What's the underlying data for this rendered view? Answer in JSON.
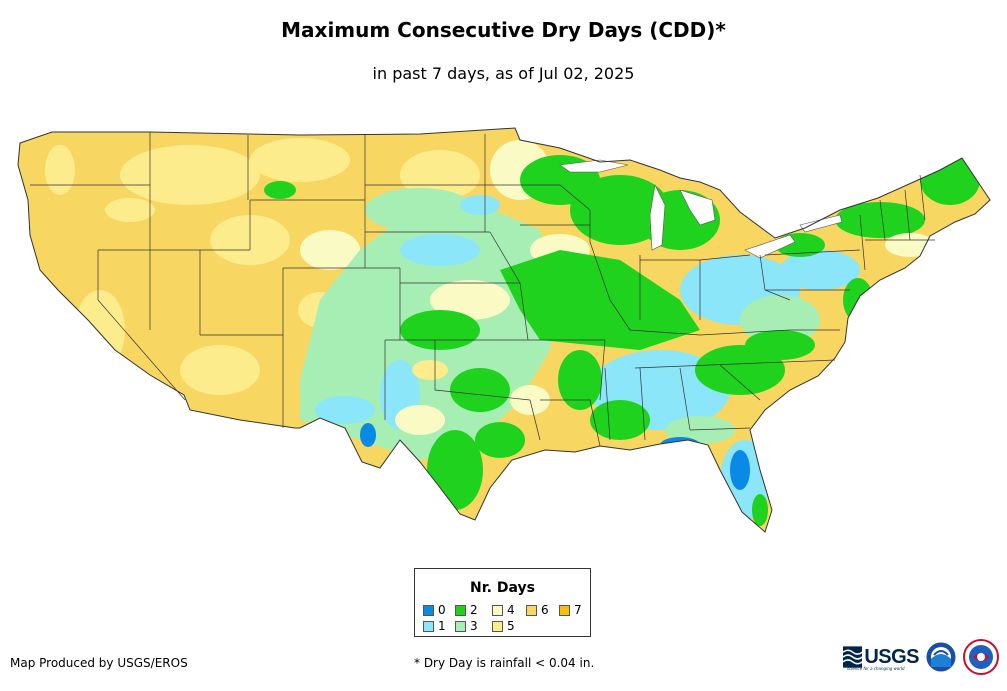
{
  "header": {
    "title": "Maximum Consecutive Dry Days (CDD)*",
    "subtitle": "in past 7 days, as of Jul 02, 2025"
  },
  "legend": {
    "title": "Nr. Days",
    "items": [
      {
        "label": "0",
        "color": "#0a8ae6"
      },
      {
        "label": "1",
        "color": "#8ae6f8"
      },
      {
        "label": "2",
        "color": "#1ed21e"
      },
      {
        "label": "3",
        "color": "#a6eeb4"
      },
      {
        "label": "4",
        "color": "#fafac4"
      },
      {
        "label": "5",
        "color": "#fcec8c"
      },
      {
        "label": "6",
        "color": "#f8d662"
      },
      {
        "label": "7",
        "color": "#f8be0c"
      }
    ]
  },
  "footer": {
    "credit": "Map Produced by USGS/EROS",
    "footnote": "* Dry Day is rainfall < 0.04 in.",
    "usgs_logo_text": "USGS",
    "usgs_tagline": "science for a changing world",
    "agency_icons": [
      "usgs-logo",
      "noaa-logo",
      "nws-logo"
    ]
  }
}
